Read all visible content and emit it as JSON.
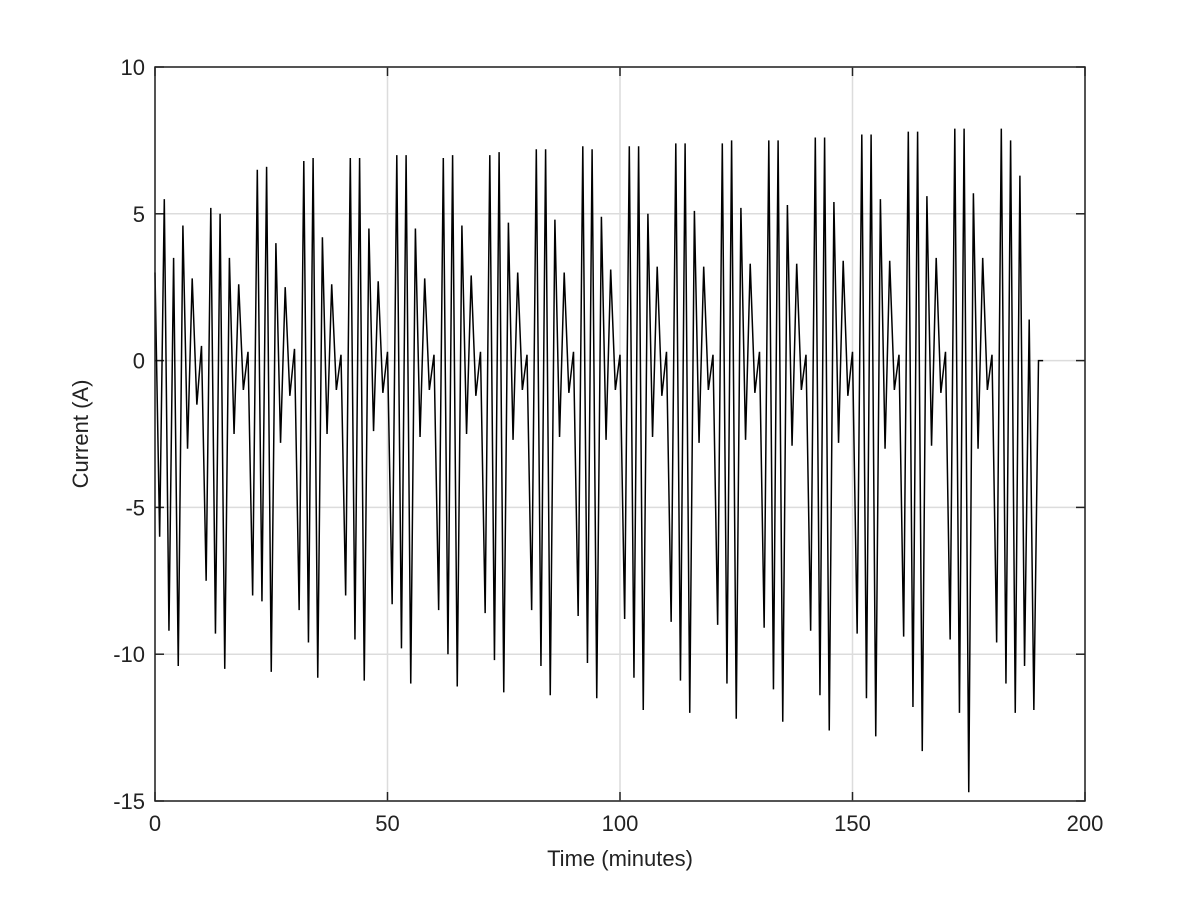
{
  "chart_data": {
    "type": "line",
    "xlabel": "Time (minutes)",
    "ylabel": "Current (A)",
    "color": "#000000",
    "grid": true,
    "xlim": [
      0,
      200
    ],
    "xticks": [
      0,
      50,
      100,
      150,
      200
    ],
    "ylim": [
      -15,
      10
    ],
    "yticks": [
      -15,
      -10,
      -5,
      0,
      5,
      10
    ],
    "x": [
      0,
      1,
      2,
      3,
      4,
      5,
      6,
      7,
      8,
      9,
      10,
      11,
      12,
      13,
      14,
      15,
      16,
      17,
      18,
      19,
      20,
      21,
      22,
      23,
      24,
      25,
      26,
      27,
      28,
      29,
      30,
      31,
      32,
      33,
      34,
      35,
      36,
      37,
      38,
      39,
      40,
      41,
      42,
      43,
      44,
      45,
      46,
      47,
      48,
      49,
      50,
      51,
      52,
      53,
      54,
      55,
      56,
      57,
      58,
      59,
      60,
      61,
      62,
      63,
      64,
      65,
      66,
      67,
      68,
      69,
      70,
      71,
      72,
      73,
      74,
      75,
      76,
      77,
      78,
      79,
      80,
      81,
      82,
      83,
      84,
      85,
      86,
      87,
      88,
      89,
      90,
      91,
      92,
      93,
      94,
      95,
      96,
      97,
      98,
      99,
      100,
      101,
      102,
      103,
      104,
      105,
      106,
      107,
      108,
      109,
      110,
      111,
      112,
      113,
      114,
      115,
      116,
      117,
      118,
      119,
      120,
      121,
      122,
      123,
      124,
      125,
      126,
      127,
      128,
      129,
      130,
      131,
      132,
      133,
      134,
      135,
      136,
      137,
      138,
      139,
      140,
      141,
      142,
      143,
      144,
      145,
      146,
      147,
      148,
      149,
      150,
      151,
      152,
      153,
      154,
      155,
      156,
      157,
      158,
      159,
      160,
      161,
      162,
      163,
      164,
      165,
      166,
      167,
      168,
      169,
      170,
      171,
      172,
      173,
      174,
      175,
      176,
      177,
      178,
      179,
      180,
      181,
      182,
      183,
      184,
      185,
      186,
      187,
      188,
      189,
      190,
      191
    ],
    "values": [
      3,
      -6,
      5.5,
      -9.2,
      3.5,
      -10.4,
      4.6,
      -3,
      2.8,
      -1.5,
      0.5,
      -7.5,
      5.2,
      -9.3,
      5,
      -10.5,
      3.5,
      -2.5,
      2.6,
      -1,
      0.3,
      -8,
      6.5,
      -8.2,
      6.6,
      -10.6,
      4,
      -2.8,
      2.5,
      -1.2,
      0.4,
      -8.5,
      6.8,
      -9.6,
      6.9,
      -10.8,
      4.2,
      -2.5,
      2.6,
      -1,
      0.2,
      -8,
      6.9,
      -9.5,
      6.9,
      -10.9,
      4.5,
      -2.4,
      2.7,
      -1.1,
      0.3,
      -8.3,
      7,
      -9.8,
      7,
      -11,
      4.5,
      -2.6,
      2.8,
      -1,
      0.2,
      -8.5,
      6.9,
      -10,
      7,
      -11.1,
      4.6,
      -2.5,
      2.9,
      -1.2,
      0.3,
      -8.6,
      7,
      -10.2,
      7.1,
      -11.3,
      4.7,
      -2.7,
      3,
      -1,
      0.2,
      -8.5,
      7.2,
      -10.4,
      7.2,
      -11.4,
      4.8,
      -2.6,
      3,
      -1.1,
      0.3,
      -8.7,
      7.3,
      -10.3,
      7.2,
      -11.5,
      4.9,
      -2.7,
      3.1,
      -1,
      0.2,
      -8.8,
      7.3,
      -10.8,
      7.3,
      -11.9,
      5,
      -2.6,
      3.2,
      -1.2,
      0.3,
      -8.9,
      7.4,
      -10.9,
      7.4,
      -12,
      5.1,
      -2.8,
      3.2,
      -1,
      0.2,
      -9,
      7.4,
      -11,
      7.5,
      -12.2,
      5.2,
      -2.7,
      3.3,
      -1.1,
      0.3,
      -9.1,
      7.5,
      -11.2,
      7.5,
      -12.3,
      5.3,
      -2.9,
      3.3,
      -1,
      0.2,
      -9.2,
      7.6,
      -11.4,
      7.6,
      -12.6,
      5.4,
      -2.8,
      3.4,
      -1.2,
      0.3,
      -9.3,
      7.7,
      -11.5,
      7.7,
      -12.8,
      5.5,
      -3,
      3.4,
      -1,
      0.2,
      -9.4,
      7.8,
      -11.8,
      7.8,
      -13.3,
      5.6,
      -2.9,
      3.5,
      -1.1,
      0.3,
      -9.5,
      7.9,
      -12,
      7.9,
      -14.7,
      5.7,
      -3,
      3.5,
      -1,
      0.2,
      -9.6,
      7.9,
      -11,
      7.5,
      -12,
      6.3,
      -10.4,
      1.4,
      -11.9,
      0,
      0
    ]
  }
}
